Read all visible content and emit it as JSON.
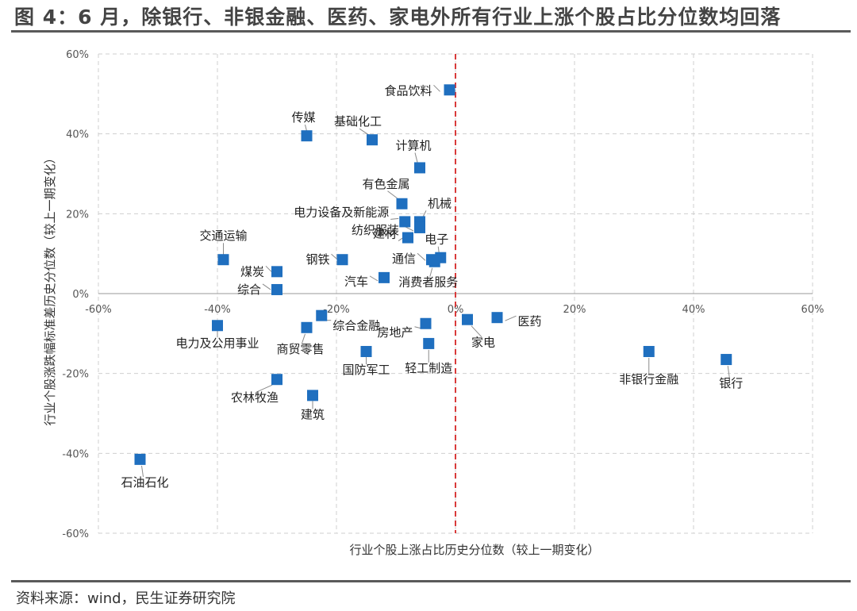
{
  "title": "图 4：6 月，除银行、非银金融、医药、家电外所有行业上涨个股占比分位数均回落",
  "source": "资料来源：wind，民生证券研究院",
  "chart_data": {
    "type": "scatter",
    "xlabel": "行业个股上涨占比历史分位数（较上一期变化）",
    "ylabel": "行业个股涨跌幅标准差历史分位数（较上一期变化）",
    "xlim": [
      -60,
      60
    ],
    "ylim": [
      -60,
      60
    ],
    "x_ticks": [
      "-60%",
      "-40%",
      "-20%",
      "0%",
      "20%",
      "40%",
      "60%"
    ],
    "y_ticks": [
      "60%",
      "40%",
      "20%",
      "0%",
      "-20%",
      "-40%",
      "-60%"
    ],
    "grid": true,
    "reference_line": {
      "axis": "x",
      "value": 0,
      "color": "#d93a3a",
      "style": "dashed"
    },
    "marker_color": "#1f6fbf",
    "points": [
      {
        "name": "食品饮料",
        "x": -1,
        "y": 51
      },
      {
        "name": "传媒",
        "x": -25,
        "y": 39.5
      },
      {
        "name": "基础化工",
        "x": -14,
        "y": 38.5
      },
      {
        "name": "计算机",
        "x": -6,
        "y": 31.5
      },
      {
        "name": "有色金属",
        "x": -9,
        "y": 22.5
      },
      {
        "name": "电力设备及新能源",
        "x": -8.5,
        "y": 18
      },
      {
        "name": "机械",
        "x": -6,
        "y": 18
      },
      {
        "name": "纺织服装",
        "x": -6,
        "y": 16.5
      },
      {
        "name": "建材",
        "x": -8,
        "y": 14
      },
      {
        "name": "电子",
        "x": -2.5,
        "y": 9
      },
      {
        "name": "通信",
        "x": -4,
        "y": 8.5
      },
      {
        "name": "消费者服务",
        "x": -3.5,
        "y": 8
      },
      {
        "name": "钢铁",
        "x": -19,
        "y": 8.5
      },
      {
        "name": "交通运输",
        "x": -39,
        "y": 8.5
      },
      {
        "name": "煤炭",
        "x": -30,
        "y": 5.5
      },
      {
        "name": "综合",
        "x": -30,
        "y": 1
      },
      {
        "name": "汽车",
        "x": -12,
        "y": 4
      },
      {
        "name": "电力及公用事业",
        "x": -40,
        "y": -8
      },
      {
        "name": "商贸零售",
        "x": -25,
        "y": -8.5
      },
      {
        "name": "综合金融",
        "x": -22.5,
        "y": -5.5
      },
      {
        "name": "房地产",
        "x": -5,
        "y": -7.5
      },
      {
        "name": "国防军工",
        "x": -15,
        "y": -14.5
      },
      {
        "name": "轻工制造",
        "x": -4.5,
        "y": -12.5
      },
      {
        "name": "农林牧渔",
        "x": -30,
        "y": -21.5
      },
      {
        "name": "建筑",
        "x": -24,
        "y": -25.5
      },
      {
        "name": "家电",
        "x": 2,
        "y": -6.5
      },
      {
        "name": "医药",
        "x": 7,
        "y": -6
      },
      {
        "name": "非银行金融",
        "x": 32.5,
        "y": -14.5
      },
      {
        "name": "银行",
        "x": 45.5,
        "y": -16.5
      },
      {
        "name": "石油石化",
        "x": -53,
        "y": -41.5
      }
    ]
  }
}
